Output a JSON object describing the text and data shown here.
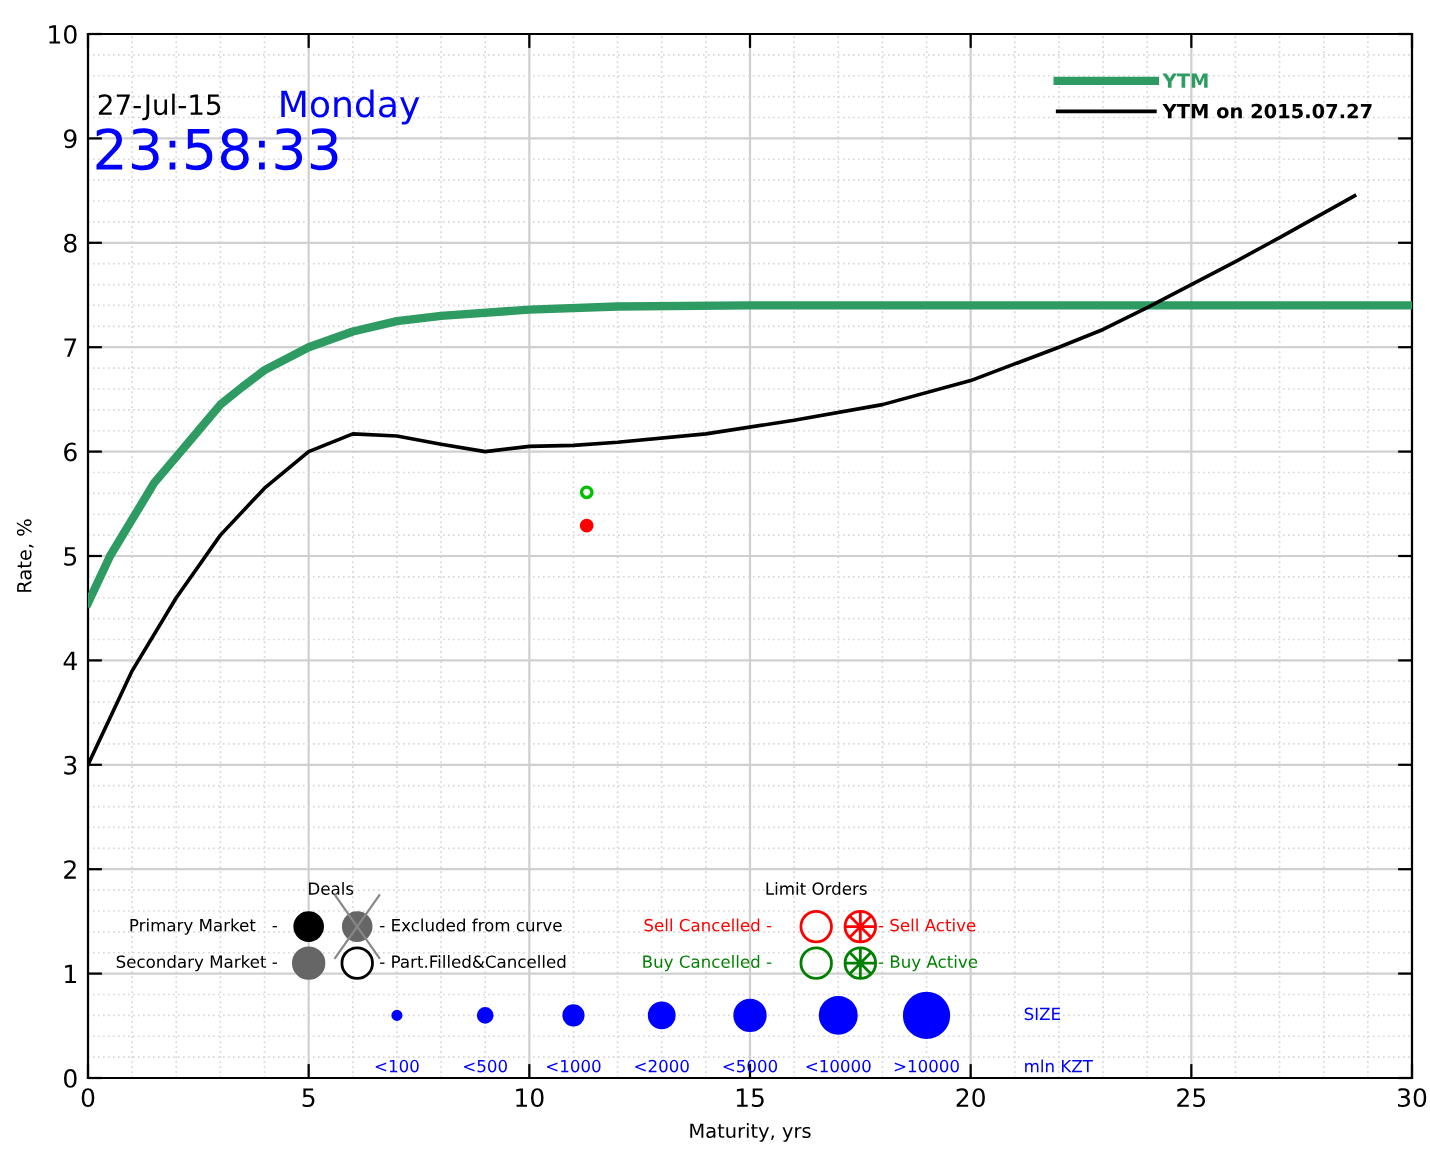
{
  "chart_data": {
    "type": "line",
    "xlabel": "Maturity, yrs",
    "ylabel": "Rate, %",
    "xlim": [
      0,
      30
    ],
    "ylim": [
      0,
      10
    ],
    "xticks": [
      0,
      5,
      10,
      15,
      20,
      25,
      30
    ],
    "yticks": [
      0,
      1,
      2,
      3,
      4,
      5,
      6,
      7,
      8,
      9,
      10
    ],
    "grid": true,
    "legend": "top right",
    "line_style": "solid",
    "series": [
      {
        "name": "YTM",
        "color": "#2e9b62",
        "x": [
          0,
          0.5,
          1,
          1.5,
          2,
          2.5,
          3,
          3.5,
          4,
          5,
          6,
          7,
          8,
          10,
          12,
          15,
          20,
          25,
          30
        ],
        "values": [
          4.55,
          5.0,
          5.35,
          5.7,
          5.95,
          6.2,
          6.45,
          6.62,
          6.78,
          7.0,
          7.15,
          7.25,
          7.3,
          7.36,
          7.39,
          7.4,
          7.4,
          7.4,
          7.4
        ]
      },
      {
        "name": "YTM on 2015.07.27",
        "color": "#000000",
        "x": [
          0,
          1,
          2,
          3,
          4,
          5,
          6,
          7,
          8,
          9,
          10,
          11,
          12,
          14,
          16,
          18,
          20,
          22,
          23,
          24,
          25,
          26,
          27,
          28.7
        ],
        "values": [
          3.0,
          3.9,
          4.6,
          5.2,
          5.65,
          6.0,
          6.17,
          6.15,
          6.07,
          6.0,
          6.05,
          6.06,
          6.09,
          6.17,
          6.3,
          6.45,
          6.68,
          7.0,
          7.17,
          7.38,
          7.6,
          7.82,
          8.05,
          8.45
        ]
      },
      {
        "type": "scatter",
        "color": "#00c000",
        "x": [
          11.3
        ],
        "values": [
          5.61
        ],
        "marker": "circle"
      },
      {
        "type": "scatter",
        "color": "#ff0000",
        "x": [
          11.3
        ],
        "values": [
          5.29
        ],
        "marker": "circle"
      }
    ],
    "annotations": [
      "27-Jul-15",
      "Monday",
      "23:58:33",
      "Deals",
      "Primary Market   -",
      "Secondary Market -",
      "- Excluded from curve",
      "- Part.Filled&Cancelled",
      "Limit Orders",
      "Sell Cancelled -",
      "Buy Cancelled -",
      "- Sell Active",
      "- Buy Active",
      "<100",
      "<500",
      "<1000",
      "<2000",
      "<5000",
      "<10000",
      ">10000",
      "SIZE",
      "mln KZT"
    ]
  }
}
